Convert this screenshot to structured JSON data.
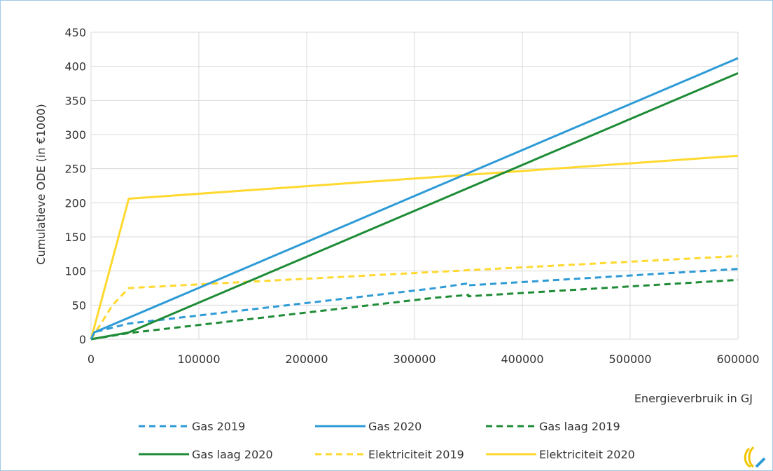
{
  "chart_data": {
    "type": "line",
    "title": "",
    "xlabel": "Energieverbruik in GJ",
    "ylabel": "Cumulatieve ODE (in €1000)",
    "xlim": [
      0,
      600000
    ],
    "ylim": [
      0,
      450
    ],
    "xticks": [
      0,
      100000,
      200000,
      300000,
      400000,
      500000,
      600000
    ],
    "yticks": [
      0,
      50,
      100,
      150,
      200,
      250,
      300,
      350,
      400,
      450
    ],
    "grid": true,
    "legend_position": "bottom",
    "series": [
      {
        "name": "Gas 2019",
        "color": "#2e9bd6",
        "dash": true,
        "points": [
          [
            0,
            0
          ],
          [
            2000,
            10
          ],
          [
            35000,
            23
          ],
          [
            320000,
            75
          ],
          [
            350000,
            82
          ],
          [
            350000,
            79
          ],
          [
            600000,
            103
          ]
        ]
      },
      {
        "name": "Gas 2020",
        "color": "#2e9bd6",
        "dash": false,
        "points": [
          [
            0,
            0
          ],
          [
            3000,
            10
          ],
          [
            600000,
            412
          ]
        ]
      },
      {
        "name": "Gas laag 2019",
        "color": "#1e8c37",
        "dash": true,
        "points": [
          [
            0,
            0
          ],
          [
            35000,
            9
          ],
          [
            320000,
            61
          ],
          [
            350000,
            65
          ],
          [
            350000,
            63
          ],
          [
            600000,
            87
          ]
        ]
      },
      {
        "name": "Gas laag 2020",
        "color": "#1e8c37",
        "dash": false,
        "points": [
          [
            0,
            0
          ],
          [
            35000,
            10
          ],
          [
            600000,
            390
          ]
        ]
      },
      {
        "name": "Elektriciteit 2019",
        "color": "#ffd92f",
        "dash": true,
        "points": [
          [
            0,
            0
          ],
          [
            20000,
            50
          ],
          [
            35000,
            75
          ],
          [
            600000,
            122
          ]
        ]
      },
      {
        "name": "Elektriciteit 2020",
        "color": "#ffd92f",
        "dash": false,
        "points": [
          [
            0,
            0
          ],
          [
            35000,
            206
          ],
          [
            600000,
            269
          ]
        ]
      }
    ]
  }
}
